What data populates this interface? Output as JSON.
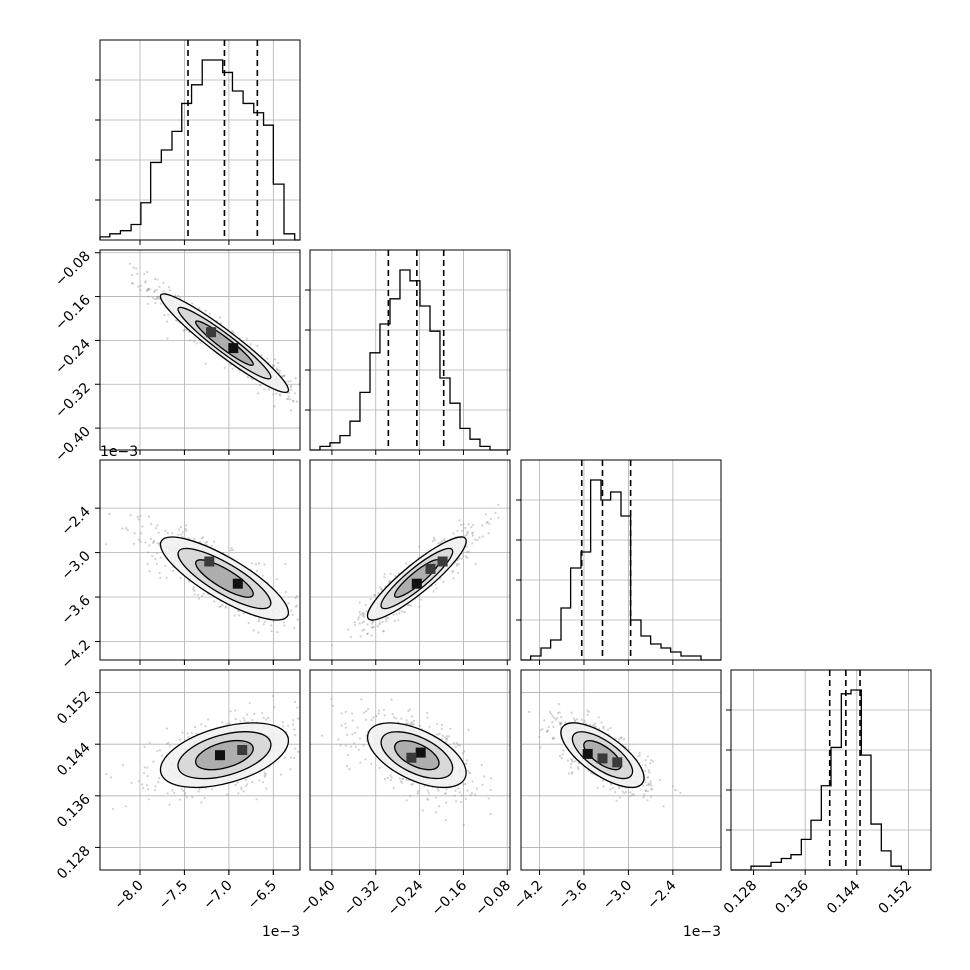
{
  "chart_data": {
    "type": "corner",
    "colors": {
      "ink": "#000000",
      "grid": "#b0b0b0",
      "scatter": "#9a9a9a",
      "background": "#ffffff"
    },
    "grid": true,
    "params": [
      {
        "range": [
          -0.00845,
          -0.0062
        ],
        "ticks": [
          -0.008,
          -0.0075,
          -0.007,
          -0.0065
        ],
        "tick_labels": [
          "−8.0",
          "−7.5",
          "−7.0",
          "−6.5"
        ],
        "offset_label": "1e−3",
        "mean": -0.00705,
        "sd": 0.00036
      },
      {
        "range": [
          -0.44,
          -0.075
        ],
        "ticks": [
          -0.4,
          -0.32,
          -0.24,
          -0.16,
          -0.08
        ],
        "tick_labels": [
          "−0.40",
          "−0.32",
          "−0.24",
          "−0.16",
          "−0.08"
        ],
        "offset_label": "",
        "mean": -0.245,
        "sd": 0.045
      },
      {
        "range": [
          -0.00445,
          -0.00175
        ],
        "ticks": [
          -0.0042,
          -0.0036,
          -0.003,
          -0.0024
        ],
        "tick_labels": [
          "−4.2",
          "−3.6",
          "−3.0",
          "−2.4"
        ],
        "offset_label": "1e−3",
        "mean": -0.00335,
        "sd": 0.00028
      },
      {
        "range": [
          0.1245,
          0.1555
        ],
        "ticks": [
          0.128,
          0.136,
          0.144,
          0.152
        ],
        "tick_labels": [
          "0.128",
          "0.136",
          "0.144",
          "0.152"
        ],
        "offset_label": "",
        "mean": 0.1423,
        "sd": 0.0025
      }
    ],
    "histograms": [
      {
        "param": 0,
        "bin_edges": [
          -0.00845,
          -0.00834,
          -0.00822,
          -0.0081,
          -0.00799,
          -0.00788,
          -0.00776,
          -0.00764,
          -0.00753,
          -0.00742,
          -0.0073,
          -0.00718,
          -0.00707,
          -0.00696,
          -0.00684,
          -0.00672,
          -0.00661,
          -0.0065,
          -0.00638,
          -0.00626,
          -0.0062
        ],
        "counts": [
          1,
          2,
          3,
          5,
          12,
          25,
          29,
          35,
          44,
          50,
          58,
          58,
          54,
          48,
          44,
          41,
          37,
          18,
          2,
          0
        ],
        "quantiles": [
          -0.00746,
          -0.00705,
          -0.00668
        ]
      },
      {
        "param": 1,
        "bin_edges": [
          -0.44,
          -0.4218,
          -0.4035,
          -0.3853,
          -0.367,
          -0.3488,
          -0.3305,
          -0.3123,
          -0.294,
          -0.2758,
          -0.2575,
          -0.2393,
          -0.221,
          -0.2028,
          -0.1845,
          -0.1663,
          -0.148,
          -0.1298,
          -0.1115,
          -0.0933,
          -0.075
        ],
        "counts": [
          0,
          1,
          2,
          4,
          8,
          16,
          27,
          35,
          42,
          50,
          47,
          40,
          33,
          20,
          13,
          6,
          3,
          1,
          0,
          0
        ],
        "quantiles": [
          -0.297,
          -0.245,
          -0.196
        ]
      },
      {
        "param": 2,
        "bin_edges": [
          -0.00445,
          -0.00432,
          -0.00418,
          -0.00405,
          -0.00391,
          -0.00378,
          -0.00364,
          -0.00351,
          -0.00337,
          -0.00324,
          -0.0031,
          -0.00297,
          -0.00283,
          -0.0027,
          -0.00256,
          -0.00243,
          -0.00229,
          -0.00216,
          -0.00202,
          -0.00189,
          -0.00175
        ],
        "counts": [
          0,
          1,
          3,
          5,
          13,
          23,
          27,
          45,
          40,
          42,
          36,
          10,
          6,
          4,
          3,
          2,
          1,
          1,
          0,
          0
        ],
        "quantiles": [
          -0.00363,
          -0.00335,
          -0.00297
        ]
      },
      {
        "param": 3,
        "bin_edges": [
          0.1245,
          0.1261,
          0.1276,
          0.1292,
          0.1307,
          0.1323,
          0.1338,
          0.1354,
          0.1369,
          0.1385,
          0.14,
          0.1416,
          0.1431,
          0.1447,
          0.1462,
          0.1478,
          0.1493,
          0.1509,
          0.1524,
          0.154,
          0.1555
        ],
        "counts": [
          0,
          0,
          1,
          1,
          2,
          3,
          4,
          8,
          13,
          22,
          32,
          46,
          47,
          30,
          12,
          5,
          1,
          0,
          0,
          0
        ],
        "quantiles": [
          0.1398,
          0.1423,
          0.1445
        ]
      }
    ],
    "pairs": [
      {
        "x": 0,
        "y": 1,
        "corr": -0.95,
        "peaks": [
          [
            -0.00695,
            -0.254
          ],
          [
            -0.0072,
            -0.225
          ]
        ]
      },
      {
        "x": 0,
        "y": 2,
        "corr": -0.82,
        "peaks": [
          [
            -0.0069,
            -0.00342
          ],
          [
            -0.00722,
            -0.00312
          ]
        ]
      },
      {
        "x": 1,
        "y": 2,
        "corr": 0.9,
        "peaks": [
          [
            -0.245,
            -0.00342
          ],
          [
            -0.22,
            -0.00322
          ],
          [
            -0.198,
            -0.00312
          ]
        ]
      },
      {
        "x": 0,
        "y": 3,
        "corr": 0.45,
        "peaks": [
          [
            -0.0071,
            0.1423
          ],
          [
            -0.00685,
            0.1431
          ]
        ]
      },
      {
        "x": 1,
        "y": 3,
        "corr": -0.55,
        "peaks": [
          [
            -0.238,
            0.1427
          ],
          [
            -0.255,
            0.1419
          ]
        ]
      },
      {
        "x": 2,
        "y": 3,
        "corr": -0.7,
        "peaks": [
          [
            -0.00355,
            0.1425
          ],
          [
            -0.00335,
            0.1418
          ],
          [
            -0.00315,
            0.1412
          ]
        ]
      }
    ]
  }
}
